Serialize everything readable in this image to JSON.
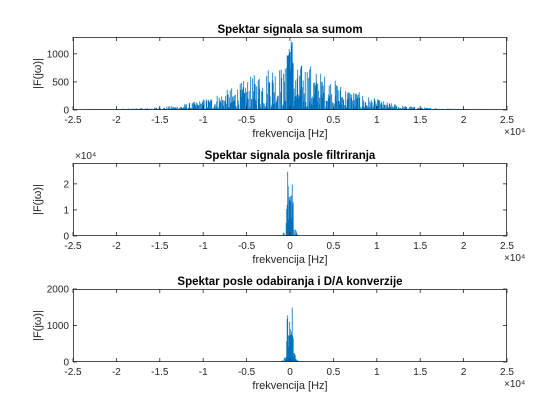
{
  "colors": {
    "series": "#0072BD",
    "axes": "#262626",
    "background": "#ffffff"
  },
  "chart_data": [
    {
      "type": "line",
      "title": "Spektar signala sa sumom",
      "xlabel": "frekvencija [Hz]",
      "ylabel": "|F(jω)|",
      "xlim": [
        -25000,
        25000
      ],
      "ylim": [
        0,
        1300
      ],
      "x_ticks": [
        -25000,
        -20000,
        -15000,
        -10000,
        -5000,
        0,
        5000,
        10000,
        15000,
        20000,
        25000
      ],
      "x_tick_labels": [
        "-2.5",
        "-2",
        "-1.5",
        "-1",
        "-0.5",
        "0",
        "0.5",
        "1",
        "1.5",
        "2",
        "2.5"
      ],
      "x_multiplier": "×10⁴",
      "y_ticks": [
        0,
        500,
        1000
      ],
      "y_tick_labels": [
        "0",
        "500",
        "1000"
      ],
      "y_multiplier": "",
      "grid": false,
      "series": [
        {
          "x": [
            -24000,
            -20000,
            -16000,
            -13000,
            -11000,
            -9000,
            -7500,
            -6000,
            -5000,
            -4000,
            -3000,
            -2000,
            -1200,
            -600,
            -250,
            0,
            250,
            600,
            1200,
            2000,
            3000,
            4000,
            5000,
            6000,
            7500,
            9000,
            11000,
            13000,
            16000,
            20000,
            24000
          ],
          "envelope": [
            10,
            20,
            40,
            80,
            150,
            250,
            350,
            450,
            560,
            650,
            720,
            880,
            820,
            700,
            1280,
            1300,
            1280,
            700,
            820,
            880,
            720,
            650,
            560,
            450,
            350,
            250,
            150,
            80,
            40,
            20,
            10
          ]
        }
      ]
    },
    {
      "type": "line",
      "title": "Spektar signala posle filtriranja",
      "xlabel": "frekvencija [Hz]",
      "ylabel": "|F(jω)|",
      "xlim": [
        -25000,
        25000
      ],
      "ylim": [
        0,
        28000
      ],
      "x_ticks": [
        -25000,
        -20000,
        -15000,
        -10000,
        -5000,
        0,
        5000,
        10000,
        15000,
        20000,
        25000
      ],
      "x_tick_labels": [
        "-2.5",
        "-2",
        "-1.5",
        "-1",
        "-0.5",
        "0",
        "0.5",
        "1",
        "1.5",
        "2",
        "2.5"
      ],
      "x_multiplier": "×10⁴",
      "y_ticks": [
        0,
        10000,
        20000
      ],
      "y_tick_labels": [
        "0",
        "1",
        "2"
      ],
      "y_multiplier": "×10⁴",
      "grid": false,
      "series": [
        {
          "x": [
            -24000,
            -2000,
            -1000,
            -600,
            -400,
            -250,
            -150,
            0,
            150,
            250,
            400,
            600,
            1000,
            2000,
            24000
          ],
          "envelope": [
            0,
            0,
            300,
            3000,
            9000,
            28000,
            11000,
            26000,
            11000,
            28000,
            9000,
            3000,
            300,
            0,
            0
          ]
        }
      ]
    },
    {
      "type": "line",
      "title": "Spektar posle odabiranja i D/A konverzije",
      "xlabel": "frekvencija [Hz]",
      "ylabel": "|F(jω)|",
      "xlim": [
        -25000,
        25000
      ],
      "ylim": [
        0,
        2000
      ],
      "x_ticks": [
        -25000,
        -20000,
        -15000,
        -10000,
        -5000,
        0,
        5000,
        10000,
        15000,
        20000,
        25000
      ],
      "x_tick_labels": [
        "-2.5",
        "-2",
        "-1.5",
        "-1",
        "-0.5",
        "0",
        "0.5",
        "1",
        "1.5",
        "2",
        "2.5"
      ],
      "x_multiplier": "×10⁴",
      "y_ticks": [
        0,
        1000,
        2000
      ],
      "y_tick_labels": [
        "0",
        "1000",
        "2000"
      ],
      "y_multiplier": "",
      "grid": false,
      "series": [
        {
          "x": [
            -24000,
            -2000,
            -1000,
            -600,
            -400,
            -250,
            -150,
            0,
            150,
            250,
            400,
            600,
            1000,
            2000,
            24000
          ],
          "envelope": [
            0,
            0,
            20,
            200,
            600,
            1750,
            700,
            1550,
            700,
            1750,
            600,
            200,
            20,
            0,
            0
          ]
        }
      ]
    }
  ]
}
